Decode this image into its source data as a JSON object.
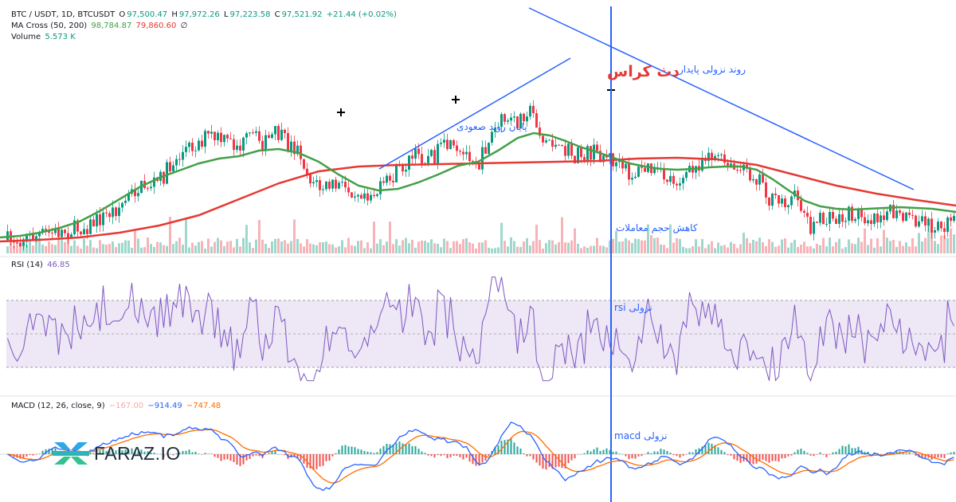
{
  "colors": {
    "up": "#089981",
    "down": "#f23645",
    "ma_fast": "#43a047",
    "ma_slow": "#e53935",
    "trendline": "#2962ff",
    "rsi": "#7e57c2",
    "rsi_band": "#ede7f6",
    "macd": "#2962ff",
    "signal": "#ff6d00"
  },
  "legend": {
    "symbol": "BTC / USDT, 1D, BTCUSDT",
    "o_label": "O",
    "o_value": "97,500.47",
    "h_label": "H",
    "h_value": "97,972.26",
    "l_label": "L",
    "l_value": "97,223.58",
    "c_label": "C",
    "c_value": "97,521.92",
    "change": "+21.44 (+0.02%)",
    "ma_name": "MA Cross (50, 200)",
    "ma_fast_value": "98,784.87",
    "ma_slow_value": "79,860.60",
    "ma_icon": "∅",
    "volume_name": "Volume",
    "volume_value": "5.573 K",
    "rsi_name": "RSI (14)",
    "rsi_value": "46.85",
    "macd_name": "MACD (12, 26, close, 9)",
    "macd_hist_value": "−167.00",
    "macd_value": "−914.49",
    "macd_signal_value": "−747.48"
  },
  "annotations": {
    "death_cross": "دث کراس",
    "persistent_downtrend": "روند نزولی پایدار",
    "end_of_uptrend": "پایان روند صعودی",
    "volume_decrease": "کاهش حجم معاملات",
    "rsi_bearish": "rsi نزولی",
    "macd_bearish": "macd نزولی"
  },
  "logo": {
    "text": "FARAZ.IO"
  },
  "chart_data": {
    "type": "candlestick",
    "panes": [
      "price",
      "volume",
      "rsi",
      "macd"
    ],
    "price_trend_ma_fast": [
      [
        0,
        103
      ],
      [
        25,
        101
      ],
      [
        50,
        97
      ],
      [
        75,
        91
      ],
      [
        100,
        83
      ],
      [
        125,
        70
      ],
      [
        150,
        55
      ],
      [
        175,
        40
      ],
      [
        200,
        28
      ],
      [
        225,
        19
      ],
      [
        250,
        10
      ],
      [
        275,
        4
      ],
      [
        300,
        1
      ],
      [
        325,
        -6
      ],
      [
        350,
        -8
      ],
      [
        375,
        -3
      ],
      [
        400,
        8
      ],
      [
        425,
        24
      ],
      [
        450,
        38
      ],
      [
        475,
        44
      ],
      [
        500,
        42
      ],
      [
        525,
        34
      ],
      [
        550,
        24
      ],
      [
        575,
        13
      ],
      [
        600,
        8
      ],
      [
        625,
        -6
      ],
      [
        650,
        -22
      ],
      [
        670,
        -28
      ],
      [
        690,
        -25
      ],
      [
        710,
        -18
      ],
      [
        730,
        -10
      ],
      [
        750,
        -4
      ],
      [
        770,
        3
      ],
      [
        790,
        10
      ],
      [
        810,
        14
      ],
      [
        830,
        17
      ],
      [
        850,
        18
      ],
      [
        870,
        17
      ],
      [
        890,
        15
      ],
      [
        910,
        14
      ],
      [
        930,
        14
      ],
      [
        950,
        18
      ],
      [
        970,
        30
      ],
      [
        990,
        44
      ],
      [
        1010,
        57
      ],
      [
        1030,
        64
      ],
      [
        1050,
        67
      ],
      [
        1070,
        68
      ],
      [
        1090,
        67
      ],
      [
        1110,
        66
      ],
      [
        1130,
        65
      ],
      [
        1150,
        66
      ],
      [
        1170,
        67
      ],
      [
        1200,
        71
      ]
    ],
    "price_trend_ma_slow": [
      [
        0,
        108
      ],
      [
        50,
        106
      ],
      [
        100,
        103
      ],
      [
        150,
        97
      ],
      [
        200,
        88
      ],
      [
        250,
        75
      ],
      [
        300,
        55
      ],
      [
        350,
        35
      ],
      [
        400,
        20
      ],
      [
        450,
        14
      ],
      [
        500,
        12
      ],
      [
        550,
        11
      ],
      [
        600,
        10
      ],
      [
        650,
        9
      ],
      [
        700,
        8
      ],
      [
        750,
        7
      ],
      [
        800,
        4
      ],
      [
        850,
        3
      ],
      [
        900,
        5
      ],
      [
        950,
        12
      ],
      [
        1000,
        25
      ],
      [
        1050,
        38
      ],
      [
        1100,
        48
      ],
      [
        1150,
        56
      ],
      [
        1200,
        63
      ]
    ],
    "price_trend_close": [
      [
        0,
        107
      ],
      [
        30,
        104
      ],
      [
        60,
        98
      ],
      [
        90,
        93
      ],
      [
        110,
        88
      ],
      [
        130,
        76
      ],
      [
        150,
        63
      ],
      [
        170,
        42
      ],
      [
        185,
        37
      ],
      [
        200,
        30
      ],
      [
        215,
        10
      ],
      [
        230,
        -6
      ],
      [
        245,
        -15
      ],
      [
        260,
        -25
      ],
      [
        280,
        -17
      ],
      [
        300,
        -11
      ],
      [
        315,
        -25
      ],
      [
        330,
        -14
      ],
      [
        345,
        -28
      ],
      [
        360,
        -14
      ],
      [
        375,
        -6
      ],
      [
        385,
        25
      ],
      [
        400,
        41
      ],
      [
        415,
        38
      ],
      [
        430,
        40
      ],
      [
        450,
        44
      ],
      [
        470,
        48
      ],
      [
        485,
        34
      ],
      [
        500,
        18
      ],
      [
        520,
        0
      ],
      [
        540,
        2
      ],
      [
        560,
        -12
      ],
      [
        575,
        3
      ],
      [
        590,
        -4
      ],
      [
        600,
        12
      ],
      [
        610,
        -17
      ],
      [
        620,
        -33
      ],
      [
        630,
        -44
      ],
      [
        645,
        -40
      ],
      [
        660,
        -58
      ],
      [
        670,
        -49
      ],
      [
        680,
        -17
      ],
      [
        690,
        -21
      ],
      [
        700,
        -4
      ],
      [
        710,
        -7
      ],
      [
        720,
        2
      ],
      [
        740,
        -4
      ],
      [
        760,
        0
      ],
      [
        775,
        12
      ],
      [
        790,
        25
      ],
      [
        810,
        16
      ],
      [
        830,
        27
      ],
      [
        850,
        31
      ],
      [
        870,
        19
      ],
      [
        885,
        -5
      ],
      [
        900,
        3
      ],
      [
        915,
        18
      ],
      [
        935,
        21
      ],
      [
        955,
        29
      ],
      [
        965,
        59
      ],
      [
        980,
        57
      ],
      [
        1000,
        52
      ],
      [
        1015,
        89
      ],
      [
        1030,
        82
      ],
      [
        1050,
        80
      ],
      [
        1070,
        73
      ],
      [
        1090,
        77
      ],
      [
        1110,
        70
      ],
      [
        1130,
        79
      ],
      [
        1150,
        85
      ],
      [
        1170,
        87
      ],
      [
        1200,
        85
      ]
    ],
    "rsi_range": [
      0,
      100
    ],
    "rsi_bands": [
      30,
      70
    ],
    "rsi_last": 46.85,
    "macd_last": -914.49,
    "signal_last": -747.48,
    "hist_last": -167.0
  }
}
